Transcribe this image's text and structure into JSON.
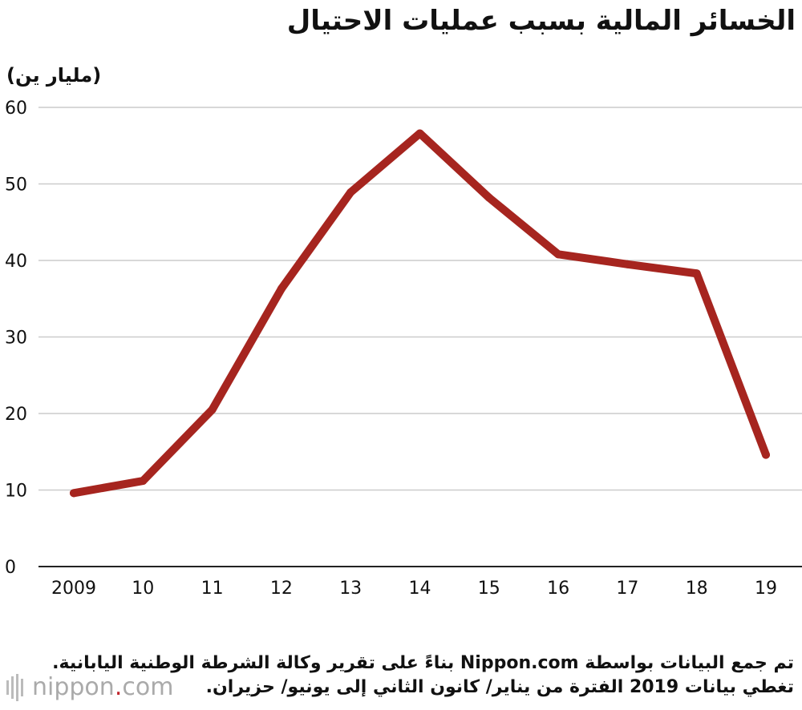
{
  "title": "الخسائر المالية بسبب عمليات الاحتيال",
  "unit_label": "(مليار ين)",
  "source_lines": [
    "تم جمع البيانات بواسطة Nippon.com بناءً على تقرير وكالة الشرطة الوطنية اليابانية.",
    "تغطي بيانات 2019 الفترة من يناير/ كانون الثاني إلى يونيو/ حزيران."
  ],
  "logo": {
    "text_before_dot": "nippon",
    "dot": ".",
    "text_after_dot": "com"
  },
  "colors": {
    "line": "#a6251f",
    "grid": "#cccccc",
    "axis": "#222222",
    "text": "#111111"
  },
  "chart_data": {
    "type": "line",
    "categories": [
      "2009",
      "10",
      "11",
      "12",
      "13",
      "14",
      "15",
      "16",
      "17",
      "18",
      "19"
    ],
    "series": [
      {
        "values": [
          9.6,
          11.2,
          20.5,
          36.3,
          48.9,
          56.6,
          48.2,
          40.8,
          39.5,
          38.3,
          14.6
        ]
      }
    ],
    "yticks": [
      0,
      10,
      20,
      30,
      40,
      50,
      60
    ],
    "ylim": [
      0,
      60
    ],
    "grid": true,
    "xlabel": "",
    "ylabel": "(مليار ين)"
  }
}
